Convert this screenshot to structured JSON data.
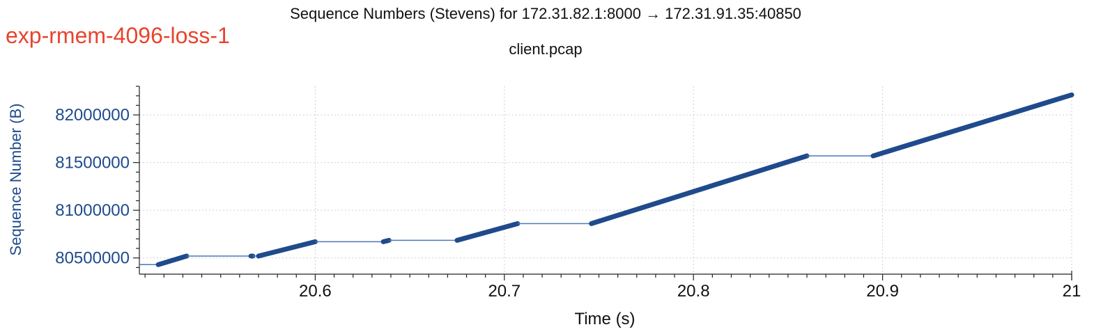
{
  "header": {
    "tag": "exp-rmem-4096-loss-1",
    "tag_color": "#e8442e"
  },
  "chart_data": {
    "type": "line",
    "title": "Sequence Numbers (Stevens) for 172.31.82.1:8000 → 172.31.91.35:40850",
    "subtitle": "client.pcap",
    "xlabel": "Time (s)",
    "ylabel": "Sequence Number (B)",
    "xlim": [
      20.507,
      21.0
    ],
    "ylim": [
      80330000,
      82300000
    ],
    "xticks": [
      20.6,
      20.7,
      20.8,
      20.9,
      21
    ],
    "xtick_labels": [
      "20.6",
      "20.7",
      "20.8",
      "20.9",
      "21"
    ],
    "yticks": [
      80500000,
      81000000,
      81500000,
      82000000
    ],
    "ytick_labels": [
      "80500000",
      "81000000",
      "81500000",
      "82000000"
    ],
    "grid": true,
    "series_color": "#1f4a8c",
    "flat_line_color": "#4a78b8",
    "series": [
      {
        "segments": [
          {
            "x": [
              20.507,
              20.517
            ],
            "y": [
              80430000,
              80430000
            ],
            "style": "thin"
          },
          {
            "x": [
              20.517,
              20.532
            ],
            "y": [
              80430000,
              80520000
            ],
            "style": "thick"
          },
          {
            "x": [
              20.532,
              20.566
            ],
            "y": [
              80520000,
              80520000
            ],
            "style": "thin"
          },
          {
            "x": [
              20.566,
              20.567
            ],
            "y": [
              80520000,
              80520000
            ],
            "style": "thick"
          },
          {
            "x": [
              20.567,
              20.57
            ],
            "y": [
              80520000,
              80520000
            ],
            "style": "thin"
          },
          {
            "x": [
              20.57,
              20.6
            ],
            "y": [
              80520000,
              80670000
            ],
            "style": "thick"
          },
          {
            "x": [
              20.6,
              20.636
            ],
            "y": [
              80670000,
              80670000
            ],
            "style": "thin"
          },
          {
            "x": [
              20.636,
              20.639
            ],
            "y": [
              80670000,
              80685000
            ],
            "style": "thick"
          },
          {
            "x": [
              20.639,
              20.675
            ],
            "y": [
              80685000,
              80685000
            ],
            "style": "thin"
          },
          {
            "x": [
              20.675,
              20.707
            ],
            "y": [
              80685000,
              80860000
            ],
            "style": "thick"
          },
          {
            "x": [
              20.707,
              20.746
            ],
            "y": [
              80860000,
              80860000
            ],
            "style": "thin"
          },
          {
            "x": [
              20.746,
              20.86
            ],
            "y": [
              80860000,
              81570000
            ],
            "style": "thick"
          },
          {
            "x": [
              20.86,
              20.895
            ],
            "y": [
              81570000,
              81570000
            ],
            "style": "thin"
          },
          {
            "x": [
              20.895,
              21.0
            ],
            "y": [
              81570000,
              82210000
            ],
            "style": "thick"
          }
        ]
      }
    ]
  }
}
